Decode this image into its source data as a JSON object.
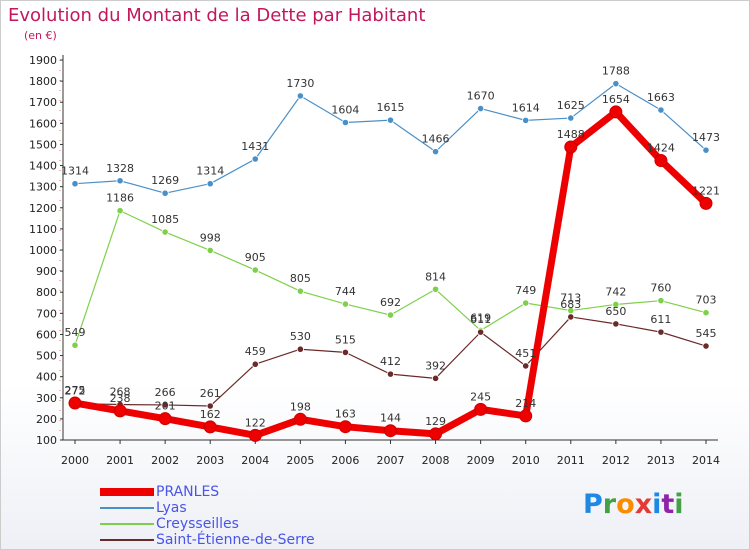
{
  "header": {
    "title": "Evolution du Montant de la Dette par Habitant",
    "subtitle": "(en €)"
  },
  "logo": {
    "text": "Proxiti",
    "letters": [
      {
        "ch": "P",
        "color": "#1e88e5"
      },
      {
        "ch": "r",
        "color": "#43a047"
      },
      {
        "ch": "o",
        "color": "#fb8c00"
      },
      {
        "ch": "x",
        "color": "#e53935"
      },
      {
        "ch": "i",
        "color": "#1e88e5"
      },
      {
        "ch": "t",
        "color": "#8e24aa"
      },
      {
        "ch": "i",
        "color": "#43a047"
      }
    ]
  },
  "chart_data": {
    "type": "line",
    "title": "Evolution du Montant de la Dette par Habitant",
    "subtitle": "(en €)",
    "x": [
      "2000",
      "2001",
      "2002",
      "2003",
      "2004",
      "2005",
      "2006",
      "2007",
      "2008",
      "2009",
      "2010",
      "2011",
      "2012",
      "2013",
      "2014"
    ],
    "yticks": [
      100,
      200,
      300,
      400,
      500,
      600,
      700,
      800,
      900,
      1000,
      1100,
      1200,
      1300,
      1400,
      1500,
      1600,
      1700,
      1800,
      1900
    ],
    "ylim": [
      100,
      1900
    ],
    "grid": false,
    "legend_position": "bottom-left",
    "series": [
      {
        "name": "PRANLES",
        "color": "#ee0000",
        "values": [
          275,
          238,
          201,
          162,
          122,
          198,
          163,
          144,
          129,
          245,
          214,
          1488,
          1654,
          1424,
          1221
        ]
      },
      {
        "name": "Lyas",
        "color": "#4a90c8",
        "values": [
          1314,
          1328,
          1269,
          1314,
          1431,
          1730,
          1604,
          1615,
          1466,
          1670,
          1614,
          1625,
          1788,
          1663,
          1473
        ]
      },
      {
        "name": "Creysseilles",
        "color": "#7ed04a",
        "values": [
          549,
          1186,
          1085,
          998,
          905,
          805,
          744,
          692,
          814,
          619,
          749,
          713,
          742,
          760,
          703
        ]
      },
      {
        "name": "Saint-Étienne-de-Serre",
        "color": "#6b2a2a",
        "values": [
          272,
          268,
          266,
          261,
          459,
          530,
          515,
          412,
          392,
          611,
          451,
          683,
          650,
          611,
          545
        ]
      }
    ]
  }
}
